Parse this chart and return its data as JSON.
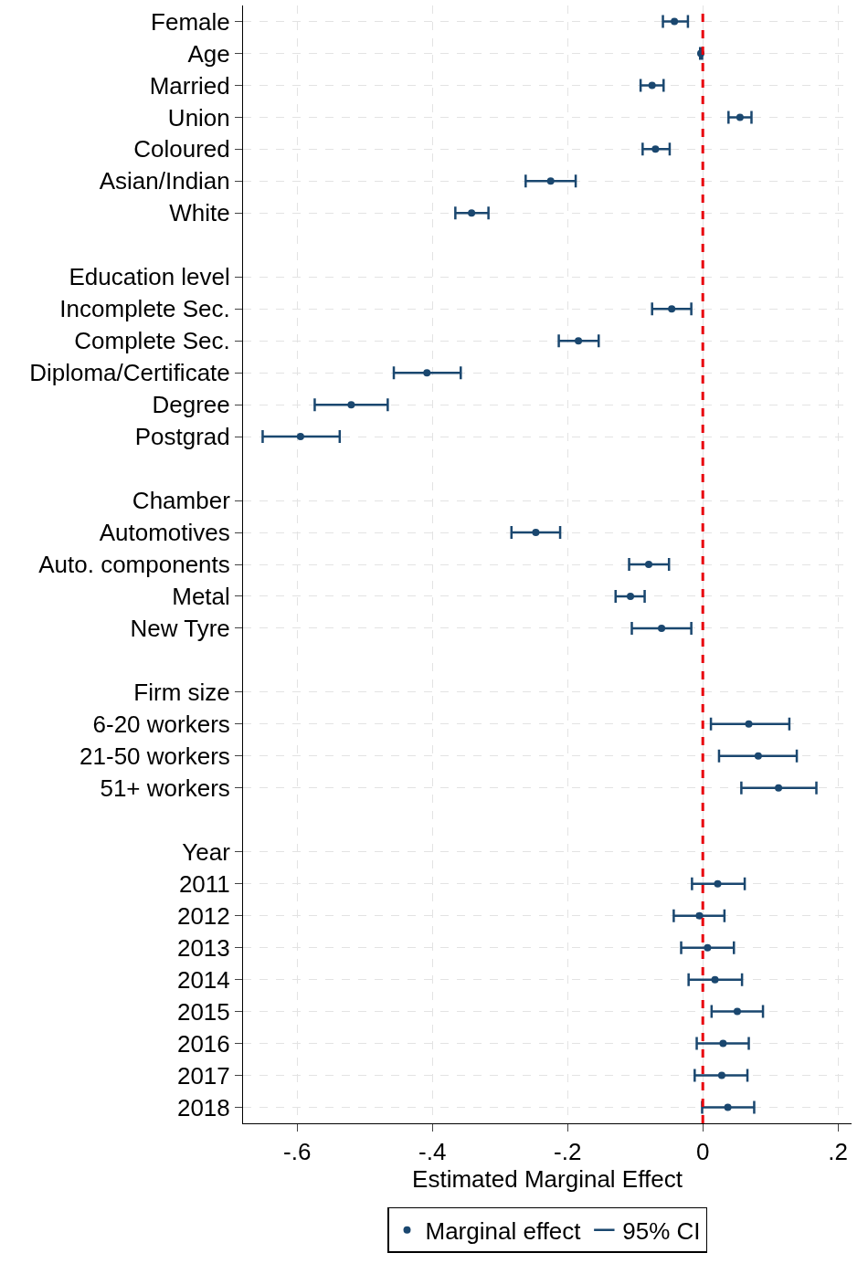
{
  "chart_data": {
    "type": "scatter",
    "orientation": "horizontal",
    "xlabel": "Estimated Marginal Effect",
    "annotations": [
      "95% CI"
    ],
    "categories": [
      "Female",
      "Age",
      "Married",
      "Union",
      "Coloured",
      "Asian/Indian",
      "White",
      null,
      "Education level",
      "Incomplete Sec.",
      "Complete Sec.",
      "Diploma/Certificate",
      "Degree",
      "Postgrad",
      null,
      "Chamber",
      "Automotives",
      "Auto. components",
      "Metal",
      "New Tyre",
      null,
      "Firm size",
      "6-20 workers",
      "21-50 workers",
      "51+ workers",
      null,
      "Year",
      "2011",
      "2012",
      "2013",
      "2014",
      "2015",
      "2016",
      "2017",
      "2018"
    ],
    "series": [
      {
        "name": "Marginal effect",
        "color": "#1a476f",
        "marker": "circle",
        "values": [
          -0.042,
          -0.003,
          -0.075,
          0.055,
          -0.07,
          -0.225,
          -0.342,
          null,
          null,
          -0.046,
          -0.184,
          -0.408,
          -0.52,
          -0.595,
          null,
          null,
          -0.247,
          -0.08,
          -0.107,
          -0.061,
          null,
          null,
          0.068,
          0.082,
          0.112,
          null,
          null,
          0.022,
          -0.005,
          0.007,
          0.018,
          0.051,
          0.03,
          0.028,
          0.037
        ],
        "errors": [
          [
            -0.059,
            -0.022
          ],
          [
            -0.004,
            -0.001
          ],
          [
            -0.092,
            -0.058
          ],
          [
            0.038,
            0.072
          ],
          [
            -0.089,
            -0.049
          ],
          [
            -0.262,
            -0.188
          ],
          [
            -0.366,
            -0.317
          ],
          null,
          null,
          [
            -0.075,
            -0.017
          ],
          [
            -0.213,
            -0.154
          ],
          [
            -0.457,
            -0.358
          ],
          [
            -0.574,
            -0.466
          ],
          [
            -0.651,
            -0.537
          ],
          null,
          null,
          [
            -0.283,
            -0.211
          ],
          [
            -0.109,
            -0.05
          ],
          [
            -0.129,
            -0.086
          ],
          [
            -0.105,
            -0.017
          ],
          null,
          null,
          [
            0.012,
            0.128
          ],
          [
            0.024,
            0.139
          ],
          [
            0.057,
            0.168
          ],
          null,
          null,
          [
            -0.016,
            0.062
          ],
          [
            -0.043,
            0.032
          ],
          [
            -0.032,
            0.046
          ],
          [
            -0.021,
            0.058
          ],
          [
            0.013,
            0.089
          ],
          [
            -0.009,
            0.068
          ],
          [
            -0.012,
            0.066
          ],
          [
            -0.001,
            0.076
          ]
        ]
      }
    ],
    "xlim": [
      -0.68,
      0.22
    ],
    "xticks": [
      {
        "value": -0.6,
        "label": "-.6"
      },
      {
        "value": -0.4,
        "label": "-.4"
      },
      {
        "value": -0.2,
        "label": "-.2"
      },
      0,
      {
        "value": 0.2,
        "label": ".2"
      }
    ],
    "ref_lines": [
      {
        "axis": "x",
        "value": 0,
        "color": "#e8000b",
        "line_style": "dashed"
      }
    ],
    "grid": true,
    "legend": "bottom"
  }
}
